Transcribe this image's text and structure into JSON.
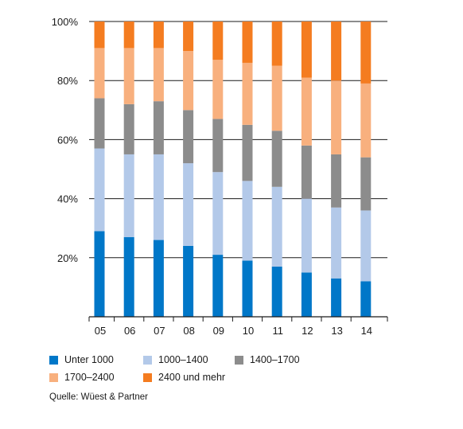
{
  "chart_data": {
    "type": "bar",
    "stacked": true,
    "categories": [
      "05",
      "06",
      "07",
      "08",
      "09",
      "10",
      "11",
      "12",
      "13",
      "14"
    ],
    "ylim": [
      0,
      100
    ],
    "yticks": [
      20,
      40,
      60,
      80,
      100
    ],
    "ytick_labels": [
      "20%",
      "40%",
      "60%",
      "80%",
      "100%"
    ],
    "grid": "horizontal",
    "legend_position": "bottom",
    "series": [
      {
        "name": "Unter 1000",
        "color": "#0077c8",
        "values": [
          29,
          27,
          26,
          24,
          21,
          19,
          17,
          15,
          13,
          12
        ]
      },
      {
        "name": "1000–1400",
        "color": "#b3c9e9",
        "values": [
          28,
          28,
          29,
          28,
          28,
          27,
          27,
          25,
          24,
          24
        ]
      },
      {
        "name": "1400–1700",
        "color": "#8c8c8c",
        "values": [
          17,
          17,
          18,
          18,
          18,
          19,
          19,
          18,
          18,
          18
        ]
      },
      {
        "name": "1700–2400",
        "color": "#f8b07e",
        "values": [
          17,
          19,
          18,
          20,
          20,
          21,
          22,
          23,
          25,
          25
        ]
      },
      {
        "name": "2400 und mehr",
        "color": "#f47c20",
        "values": [
          9,
          9,
          9,
          10,
          13,
          14,
          15,
          19,
          20,
          21
        ]
      }
    ]
  },
  "source_text": "Quelle: Wüest & Partner"
}
